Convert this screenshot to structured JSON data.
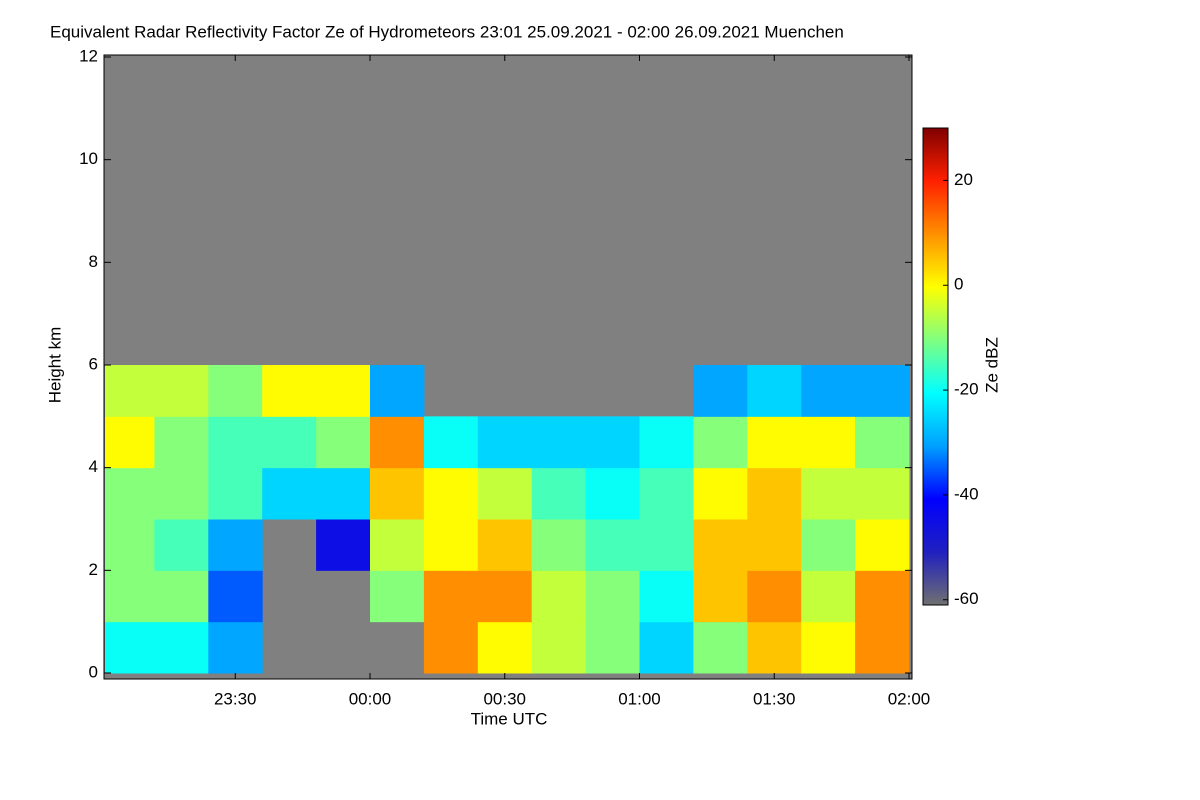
{
  "chart_data": {
    "type": "heatmap",
    "title": "Equivalent Radar Reflectivity Factor Ze of Hydrometeors   23:01 25.09.2021 - 02:00 26.09.2021 Muenchen",
    "xlabel": "Time UTC",
    "ylabel": "Height km",
    "colorbar_label": "Ze dBZ",
    "xlim": [
      -59,
      120
    ],
    "xticks": [
      {
        "value": -30,
        "label": "23:30"
      },
      {
        "value": 0,
        "label": "00:00"
      },
      {
        "value": 30,
        "label": "00:30"
      },
      {
        "value": 60,
        "label": "01:00"
      },
      {
        "value": 90,
        "label": "01:30"
      },
      {
        "value": 120,
        "label": "02:00"
      }
    ],
    "ylim": [
      0,
      12
    ],
    "yticks": [
      0,
      2,
      4,
      6,
      8,
      10,
      12
    ],
    "xbins": [
      -59,
      -48,
      -36,
      -24,
      -12,
      0,
      12,
      24,
      36,
      48,
      60,
      72,
      84,
      96,
      108,
      120
    ],
    "ybins": [
      0,
      1,
      2,
      3,
      4,
      5,
      6,
      7,
      8,
      9,
      10,
      11,
      12
    ],
    "z": [
      [
        -20,
        -20,
        -30,
        null,
        null,
        null,
        10,
        0,
        -5,
        -10,
        -25,
        -10,
        5,
        0,
        10
      ],
      [
        -10,
        -10,
        -35,
        null,
        null,
        -10,
        10,
        10,
        -5,
        -10,
        -20,
        5,
        10,
        -5,
        10
      ],
      [
        -10,
        -15,
        -30,
        null,
        -45,
        -5,
        0,
        5,
        -10,
        -15,
        -15,
        5,
        5,
        -10,
        0
      ],
      [
        -10,
        -10,
        -15,
        -25,
        -25,
        5,
        0,
        -5,
        -15,
        -20,
        -15,
        0,
        5,
        -5,
        -5
      ],
      [
        0,
        -10,
        -15,
        -15,
        -10,
        10,
        -20,
        -25,
        -25,
        -25,
        -20,
        -10,
        0,
        0,
        -10
      ],
      [
        -5,
        -5,
        -10,
        0,
        0,
        -30,
        null,
        null,
        null,
        null,
        null,
        -30,
        -25,
        -30,
        -30
      ],
      [
        null,
        null,
        null,
        null,
        null,
        null,
        null,
        null,
        null,
        null,
        null,
        null,
        null,
        null,
        null
      ],
      [
        null,
        null,
        null,
        null,
        null,
        null,
        null,
        null,
        null,
        null,
        null,
        null,
        null,
        null,
        null
      ],
      [
        null,
        null,
        null,
        null,
        null,
        null,
        null,
        null,
        null,
        null,
        null,
        null,
        null,
        null,
        null
      ],
      [
        null,
        null,
        null,
        null,
        null,
        null,
        null,
        null,
        null,
        null,
        null,
        null,
        null,
        null,
        null
      ],
      [
        null,
        null,
        null,
        null,
        null,
        null,
        null,
        null,
        null,
        null,
        null,
        null,
        null,
        null,
        null
      ],
      [
        null,
        null,
        null,
        null,
        null,
        null,
        null,
        null,
        null,
        null,
        null,
        null,
        null,
        null,
        null
      ]
    ],
    "zlim": [
      -61,
      30
    ],
    "zticks": [
      -60,
      -40,
      -20,
      0,
      20
    ],
    "colorscale": [
      "#707070",
      "#2020c0",
      "#0000ff",
      "#00a0ff",
      "#00ffff",
      "#80ff80",
      "#ffff00",
      "#ff9000",
      "#ff2000",
      "#800000"
    ],
    "null_color": "#808080"
  }
}
